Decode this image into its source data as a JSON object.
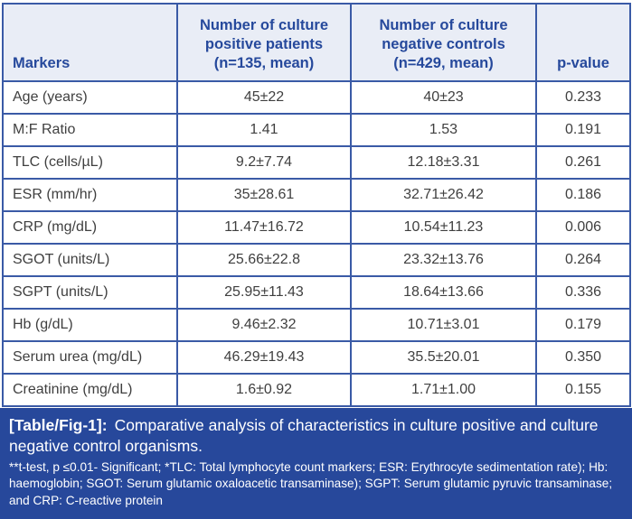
{
  "colors": {
    "border_blue": "#3a5aa6",
    "header_bg": "#e9edf6",
    "header_text": "#26499c",
    "footer_bg": "#27489b",
    "body_text": "#3f3f3f",
    "footer_text": "#ffffff"
  },
  "table": {
    "columns": [
      "Markers",
      "Number of culture positive patients (n=135, mean)",
      "Number of culture negative controls (n=429, mean)",
      "p-value"
    ],
    "rows": [
      {
        "marker": "Age (years)",
        "positive": "45±22",
        "negative": "40±23",
        "p": "0.233"
      },
      {
        "marker": "M:F Ratio",
        "positive": "1.41",
        "negative": "1.53",
        "p": "0.191"
      },
      {
        "marker": "TLC (cells/µL)",
        "positive": "9.2±7.74",
        "negative": "12.18±3.31",
        "p": "0.261"
      },
      {
        "marker": "ESR (mm/hr)",
        "positive": "35±28.61",
        "negative": "32.71±26.42",
        "p": "0.186"
      },
      {
        "marker": "CRP (mg/dL)",
        "positive": "11.47±16.72",
        "negative": "10.54±11.23",
        "p": "0.006"
      },
      {
        "marker": "SGOT (units/L)",
        "positive": "25.66±22.8",
        "negative": "23.32±13.76",
        "p": "0.264"
      },
      {
        "marker": "SGPT (units/L)",
        "positive": "25.95±11.43",
        "negative": "18.64±13.66",
        "p": "0.336"
      },
      {
        "marker": "Hb (g/dL)",
        "positive": "9.46±2.32",
        "negative": "10.71±3.01",
        "p": "0.179"
      },
      {
        "marker": "Serum urea (mg/dL)",
        "positive": "46.29±19.43",
        "negative": "35.5±20.01",
        "p": "0.350"
      },
      {
        "marker": "Creatinine (mg/dL)",
        "positive": "1.6±0.92",
        "negative": "1.71±1.00",
        "p": "0.155"
      }
    ]
  },
  "footer": {
    "caption_label": "[Table/Fig-1]:",
    "caption_text": "Comparative analysis of characteristics in culture positive and culture negative control organisms.",
    "footnote": "**t-test, p ≤0.01- Significant; *TLC: Total lymphocyte count markers; ESR: Erythrocyte sedimentation rate); Hb: haemoglobin; SGOT: Serum glutamic oxaloacetic transaminase); SGPT: Serum glutamic pyruvic transaminase; and CRP: C-reactive protein"
  }
}
